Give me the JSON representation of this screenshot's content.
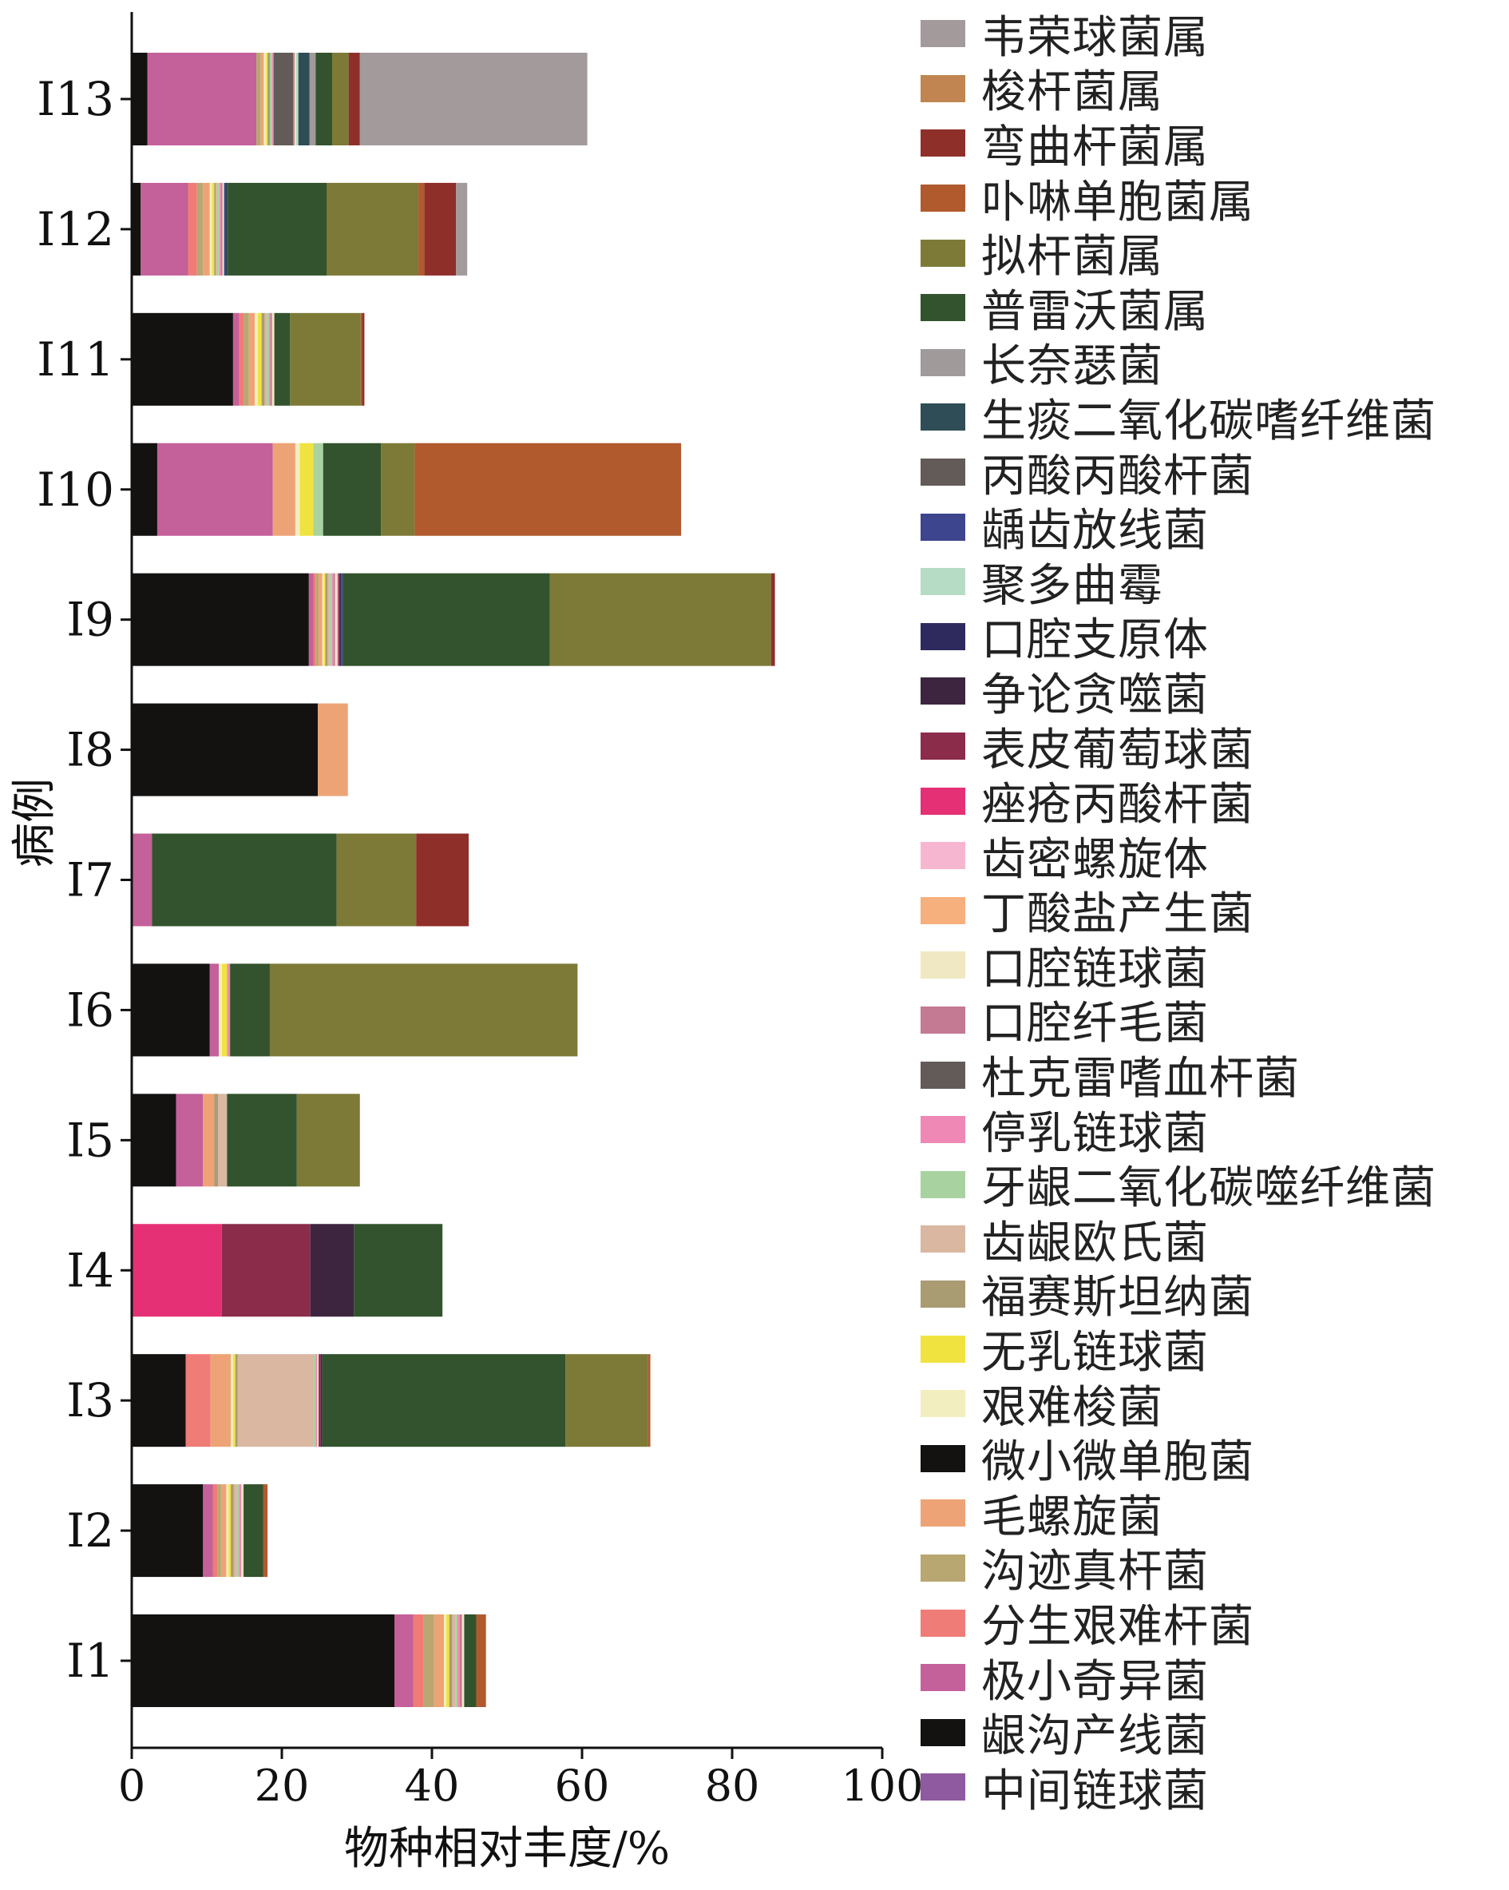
{
  "chart_data": {
    "type": "bar",
    "orientation": "horizontal",
    "stacked": true,
    "xlabel": "物种相对丰度/%",
    "ylabel": "病例",
    "xlim": [
      0,
      100
    ],
    "xticks": [
      0,
      20,
      40,
      60,
      80,
      100
    ],
    "grid": false,
    "legend_position": "right",
    "categories": [
      "I1",
      "I2",
      "I3",
      "I4",
      "I5",
      "I6",
      "I7",
      "I8",
      "I9",
      "I10",
      "I11",
      "I12",
      "I13"
    ],
    "series": [
      {
        "name": "中间链球菌",
        "color": "#8f5aa0",
        "values": [
          0,
          0,
          0,
          0,
          0,
          0,
          0,
          0,
          0,
          0,
          0,
          0,
          0
        ]
      },
      {
        "name": "龈沟产线菌",
        "color": "#141210",
        "values": [
          35,
          9.5,
          7.2,
          0,
          5.9,
          10.4,
          0,
          24.8,
          23.6,
          3.4,
          13.5,
          1.2,
          2.1
        ]
      },
      {
        "name": "极小奇异菌",
        "color": "#c4609a",
        "values": [
          2.5,
          1.3,
          0,
          0,
          3.6,
          1.2,
          2.7,
          0,
          0.6,
          15.4,
          0.8,
          6.3,
          14.5
        ]
      },
      {
        "name": "分生艰难杆菌",
        "color": "#f07c78",
        "values": [
          1.4,
          0.6,
          3.3,
          0,
          0,
          0,
          0,
          0,
          0.3,
          0,
          0.6,
          1.2,
          0
        ]
      },
      {
        "name": "沟迹真杆菌",
        "color": "#b9a772",
        "values": [
          1.4,
          0.5,
          0,
          0,
          0,
          0,
          0,
          0,
          0.4,
          0,
          0.7,
          0.8,
          0.6
        ]
      },
      {
        "name": "毛螺旋菌",
        "color": "#eea376",
        "values": [
          1.3,
          0.7,
          2.7,
          0,
          1.5,
          0,
          0,
          4.0,
          0.5,
          3.0,
          0.8,
          0.9,
          0.4
        ]
      },
      {
        "name": "微小微单胞菌",
        "color": "#141210",
        "values": [
          0,
          0,
          0,
          0,
          0,
          0,
          0,
          0,
          0,
          0,
          0,
          0,
          0
        ]
      },
      {
        "name": "艰难梭菌",
        "color": "#f3eec0",
        "values": [
          0.3,
          0.3,
          0.3,
          0,
          0,
          0.4,
          0,
          0,
          0.2,
          0.6,
          0.4,
          0.3,
          0.3
        ]
      },
      {
        "name": "无乳链球菌",
        "color": "#f1e33f",
        "values": [
          0.4,
          0.3,
          0.3,
          0,
          0,
          0.7,
          0,
          0,
          0.2,
          1.8,
          0.5,
          0.3,
          0.2
        ]
      },
      {
        "name": "福赛斯坦纳菌",
        "color": "#a99b72",
        "values": [
          0.4,
          0.4,
          0.3,
          0,
          0.5,
          0,
          0,
          0,
          0.3,
          0,
          0.4,
          0.2,
          0.3
        ]
      },
      {
        "name": "齿龈欧氏菌",
        "color": "#d9b7a1",
        "values": [
          0.4,
          0.4,
          10.1,
          0,
          1.2,
          0,
          0,
          0,
          0.3,
          0,
          0.3,
          0.3,
          0
        ]
      },
      {
        "name": "牙龈二氧化碳噬纤维菌",
        "color": "#a8d3a1",
        "values": [
          0.3,
          0.3,
          0.3,
          0,
          0,
          0,
          0,
          0,
          0.3,
          1.3,
          0.3,
          0.2,
          0.3
        ]
      },
      {
        "name": "停乳链球菌",
        "color": "#f088b5",
        "values": [
          0.3,
          0.3,
          0.2,
          0,
          0,
          0.4,
          0,
          0,
          0.2,
          0,
          0.2,
          0.2,
          0.2
        ]
      },
      {
        "name": "杜克雷嗜血杆菌",
        "color": "#625b57",
        "values": [
          0,
          0,
          0,
          0,
          0,
          0,
          0,
          0,
          0,
          0,
          0,
          0,
          2.6
        ]
      },
      {
        "name": "口腔纤毛菌",
        "color": "#c37a92",
        "values": [
          0.3,
          0,
          0,
          0,
          0,
          0,
          0,
          0,
          0.2,
          0,
          0.2,
          0.2,
          0.2
        ]
      },
      {
        "name": "口腔链球菌",
        "color": "#f0e8c3",
        "values": [
          0.3,
          0.3,
          0.2,
          0,
          0,
          0,
          0,
          0,
          0.2,
          0,
          0.3,
          0.2,
          0.2
        ]
      },
      {
        "name": "丁酸盐产生菌",
        "color": "#f6b07e",
        "values": [
          0,
          0,
          0,
          0,
          0,
          0,
          0,
          0,
          0,
          0,
          0,
          0,
          0
        ]
      },
      {
        "name": "齿密螺旋体",
        "color": "#f7b6cf",
        "values": [
          0,
          0,
          0,
          0,
          0,
          0,
          0,
          0,
          0.2,
          0,
          0,
          0,
          0
        ]
      },
      {
        "name": "痤疮丙酸杆菌",
        "color": "#e53075",
        "values": [
          0,
          0,
          0,
          12,
          0,
          0,
          0,
          0,
          0,
          0,
          0,
          0,
          0
        ]
      },
      {
        "name": "表皮葡萄球菌",
        "color": "#8b2c4b",
        "values": [
          0,
          0,
          0.3,
          11.8,
          0,
          0,
          0,
          0,
          0.2,
          0,
          0,
          0,
          0
        ]
      },
      {
        "name": "争论贪噬菌",
        "color": "#3d2540",
        "values": [
          0,
          0,
          0,
          5.8,
          0,
          0,
          0,
          0,
          0,
          0,
          0,
          0,
          0
        ]
      },
      {
        "name": "口腔支原体",
        "color": "#2e2a5e",
        "values": [
          0,
          0,
          0.2,
          0,
          0,
          0,
          0,
          0,
          0.2,
          0,
          0,
          0,
          0
        ]
      },
      {
        "name": "聚多曲霉",
        "color": "#b6dcc6",
        "values": [
          0,
          0,
          0,
          0,
          0,
          0,
          0,
          0,
          0,
          0,
          0,
          0,
          0.3
        ]
      },
      {
        "name": "龋齿放线菌",
        "color": "#3d458e",
        "values": [
          0,
          0,
          0,
          0,
          0,
          0,
          0,
          0,
          0.2,
          0,
          0,
          0.2,
          0
        ]
      },
      {
        "name": "丙酸丙酸杆菌",
        "color": "#625b57",
        "values": [
          0,
          0,
          0,
          0,
          0,
          0,
          0,
          0,
          0,
          0,
          0,
          0,
          0
        ]
      },
      {
        "name": "生痰二氧化碳嗜纤维菌",
        "color": "#2f4d56",
        "values": [
          0,
          0,
          0,
          0,
          0,
          0,
          0,
          0,
          0,
          0,
          0,
          0.3,
          1.5
        ]
      },
      {
        "name": "长奈瑟菌",
        "color": "#a19a9b",
        "values": [
          0,
          0,
          0,
          0,
          0,
          0,
          0,
          0,
          0,
          0,
          0,
          0,
          0.8
        ]
      },
      {
        "name": "普雷沃菌属",
        "color": "#32532d",
        "values": [
          1.6,
          2.6,
          32.4,
          11.8,
          9.3,
          5.3,
          24.6,
          0,
          27.6,
          7.7,
          2.1,
          13.2,
          2.2
        ]
      },
      {
        "name": "拟杆菌属",
        "color": "#7d7a37",
        "values": [
          0,
          0,
          11,
          0,
          8.4,
          41,
          10.6,
          0,
          29.5,
          4.5,
          9.4,
          12.2,
          2.2
        ]
      },
      {
        "name": "卟啉单胞菌属",
        "color": "#b05a2e",
        "values": [
          1.3,
          0.6,
          0.3,
          0,
          0,
          0,
          0,
          0,
          0,
          35.5,
          0.2,
          0.8,
          0
        ]
      },
      {
        "name": "弯曲杆菌属",
        "color": "#8f2f2a",
        "values": [
          0,
          0,
          0,
          0,
          0,
          0,
          7,
          0,
          0.5,
          0,
          0.3,
          4.2,
          1.5
        ]
      },
      {
        "name": "梭杆菌属",
        "color": "#c08550",
        "values": [
          0,
          0,
          0,
          0,
          0,
          0,
          0,
          0,
          0,
          0,
          0,
          0,
          0
        ]
      },
      {
        "name": "韦荣球菌属",
        "color": "#a29a9b",
        "values": [
          0,
          0,
          0,
          0,
          0,
          0,
          0,
          0,
          0,
          0,
          0,
          1.5,
          30.3
        ]
      }
    ],
    "legend_order": [
      "韦荣球菌属",
      "梭杆菌属",
      "弯曲杆菌属",
      "卟啉单胞菌属",
      "拟杆菌属",
      "普雷沃菌属",
      "长奈瑟菌",
      "生痰二氧化碳嗜纤维菌",
      "丙酸丙酸杆菌",
      "龋齿放线菌",
      "聚多曲霉",
      "口腔支原体",
      "争论贪噬菌",
      "表皮葡萄球菌",
      "痤疮丙酸杆菌",
      "齿密螺旋体",
      "丁酸盐产生菌",
      "口腔链球菌",
      "口腔纤毛菌",
      "杜克雷嗜血杆菌",
      "停乳链球菌",
      "牙龈二氧化碳噬纤维菌",
      "齿龈欧氏菌",
      "福赛斯坦纳菌",
      "无乳链球菌",
      "艰难梭菌",
      "微小微单胞菌",
      "毛螺旋菌",
      "沟迹真杆菌",
      "分生艰难杆菌",
      "极小奇异菌",
      "龈沟产线菌",
      "中间链球菌"
    ]
  }
}
